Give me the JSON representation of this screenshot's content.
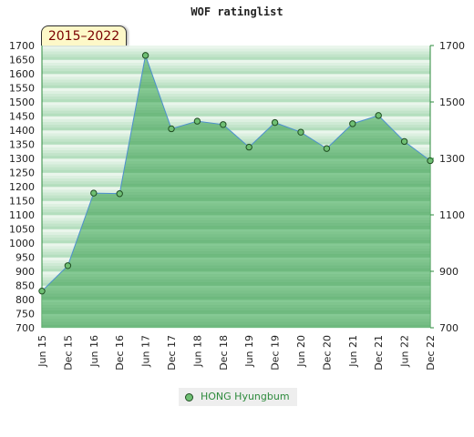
{
  "chart_data": {
    "type": "area",
    "title": "WOF ratinglist",
    "period_badge": "2015–2022",
    "categories": [
      "Jun 15",
      "Dec 15",
      "Jun 16",
      "Dec 16",
      "Jun 17",
      "Dec 17",
      "Jun 18",
      "Dec 18",
      "Jun 19",
      "Dec 19",
      "Jun 20",
      "Dec 20",
      "Jun 21",
      "Dec 21",
      "Jun 22",
      "Dec 22"
    ],
    "series": [
      {
        "name": "HONG Hyungbum",
        "values": [
          830,
          920,
          1177,
          1175,
          1665,
          1405,
          1432,
          1420,
          1340,
          1427,
          1393,
          1335,
          1423,
          1452,
          1360,
          1292
        ]
      }
    ],
    "ylim": [
      700,
      1700
    ],
    "y_left_ticks": [
      700,
      750,
      800,
      850,
      900,
      950,
      1000,
      1050,
      1100,
      1150,
      1200,
      1250,
      1300,
      1350,
      1400,
      1450,
      1500,
      1550,
      1600,
      1650,
      1700
    ],
    "y_right_ticks": [
      700,
      900,
      1100,
      1300,
      1500,
      1700
    ],
    "grid": true,
    "legend_position": "bottom",
    "colors": {
      "fill": "#7ac58a",
      "line": "#4d8fcf",
      "marker_fill": "#6fbf73",
      "marker_stroke": "#1f4d22",
      "legend_text": "#2e8b3d",
      "band_light": "#eaf6ec",
      "band_dark": "#a9d8b2"
    }
  }
}
